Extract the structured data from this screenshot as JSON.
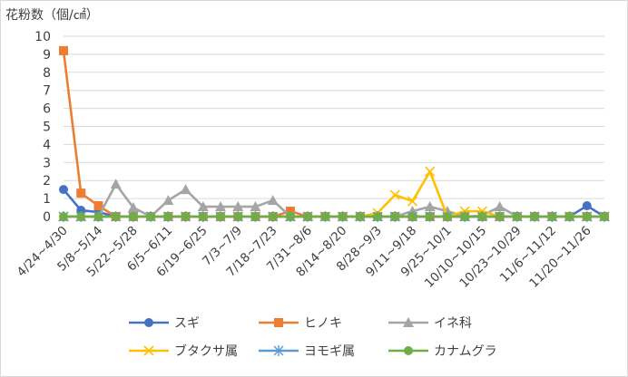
{
  "chart_data": {
    "type": "line",
    "ylabel": "花粉数（個/㎠）",
    "ylim": [
      0,
      10
    ],
    "yticks": [
      0,
      1,
      2,
      3,
      4,
      5,
      6,
      7,
      8,
      9,
      10
    ],
    "grid": true,
    "legend_position": "bottom",
    "categories": [
      "4/24~4/30",
      "",
      "5/8~5/14",
      "",
      "5/22~5/28",
      "",
      "6/5~6/11",
      "",
      "6/19~6/25",
      "",
      "7/3~7/9",
      "",
      "7/18~7/23",
      "",
      "7/31~8/6",
      "",
      "8/14~8/20",
      "",
      "8/28~9/3",
      "",
      "9/11~9/18",
      "",
      "9/25~10/1",
      "",
      "10/10~10/15",
      "",
      "10/23~10/29",
      "",
      "11/6~11/12",
      "",
      "11/20~11/26",
      ""
    ],
    "x_tick_labels": [
      "4/24~4/30",
      "5/8~5/14",
      "5/22~5/28",
      "6/5~6/11",
      "6/19~6/25",
      "7/3~7/9",
      "7/18~7/23",
      "7/31~8/6",
      "8/14~8/20",
      "8/28~9/3",
      "9/11~9/18",
      "9/25~10/1",
      "10/10~10/15",
      "10/23~10/29",
      "11/6~11/12",
      "11/20~11/26"
    ],
    "series": [
      {
        "name": "スギ",
        "color": "#4472C4",
        "marker": "circle",
        "values": [
          1.5,
          0.35,
          0.25,
          0,
          0,
          0,
          0,
          0,
          0,
          0,
          0,
          0,
          0,
          0,
          0,
          0,
          0,
          0,
          0,
          0,
          0,
          0,
          0,
          0,
          0,
          0,
          0,
          0,
          0,
          0,
          0.6,
          0
        ]
      },
      {
        "name": "ヒノキ",
        "color": "#ED7D31",
        "marker": "square",
        "values": [
          9.2,
          1.3,
          0.6,
          0,
          0,
          0,
          0,
          0,
          0,
          0,
          0,
          0,
          0,
          0.3,
          0,
          0,
          0,
          0,
          0,
          0,
          0,
          0,
          0,
          0,
          0,
          0,
          0,
          0,
          0,
          0,
          0,
          0
        ]
      },
      {
        "name": "イネ科",
        "color": "#A5A5A5",
        "marker": "triangle",
        "values": [
          0,
          0,
          0,
          1.8,
          0.5,
          0,
          0.9,
          1.5,
          0.55,
          0.55,
          0.55,
          0.55,
          0.9,
          0,
          0,
          0,
          0,
          0,
          0,
          0,
          0.3,
          0.55,
          0.3,
          0,
          0.05,
          0.55,
          0,
          0,
          0,
          0,
          0,
          0
        ]
      },
      {
        "name": "ブタクサ属",
        "color": "#FFC000",
        "marker": "x",
        "values": [
          0,
          0,
          0,
          0,
          0,
          0,
          0,
          0,
          0,
          0,
          0,
          0,
          0,
          0,
          0,
          0,
          0,
          0,
          0.2,
          1.2,
          0.85,
          2.5,
          0,
          0.3,
          0.3,
          0,
          0,
          0,
          0,
          0,
          0,
          0
        ]
      },
      {
        "name": "ヨモギ属",
        "color": "#5B9BD5",
        "marker": "star",
        "values": [
          0,
          0,
          0,
          0,
          0,
          0,
          0,
          0,
          0,
          0,
          0,
          0,
          0,
          0,
          0,
          0,
          0,
          0,
          0,
          0,
          0,
          0,
          0,
          0,
          0,
          0,
          0,
          0,
          0,
          0,
          0,
          0
        ]
      },
      {
        "name": "カナムグラ",
        "color": "#70AD47",
        "marker": "circle",
        "values": [
          0,
          0,
          0,
          0,
          0,
          0,
          0,
          0,
          0,
          0,
          0,
          0,
          0,
          0,
          0,
          0,
          0,
          0,
          0,
          0,
          0,
          0,
          0,
          0,
          0,
          0,
          0,
          0,
          0,
          0,
          0,
          0
        ]
      }
    ]
  }
}
